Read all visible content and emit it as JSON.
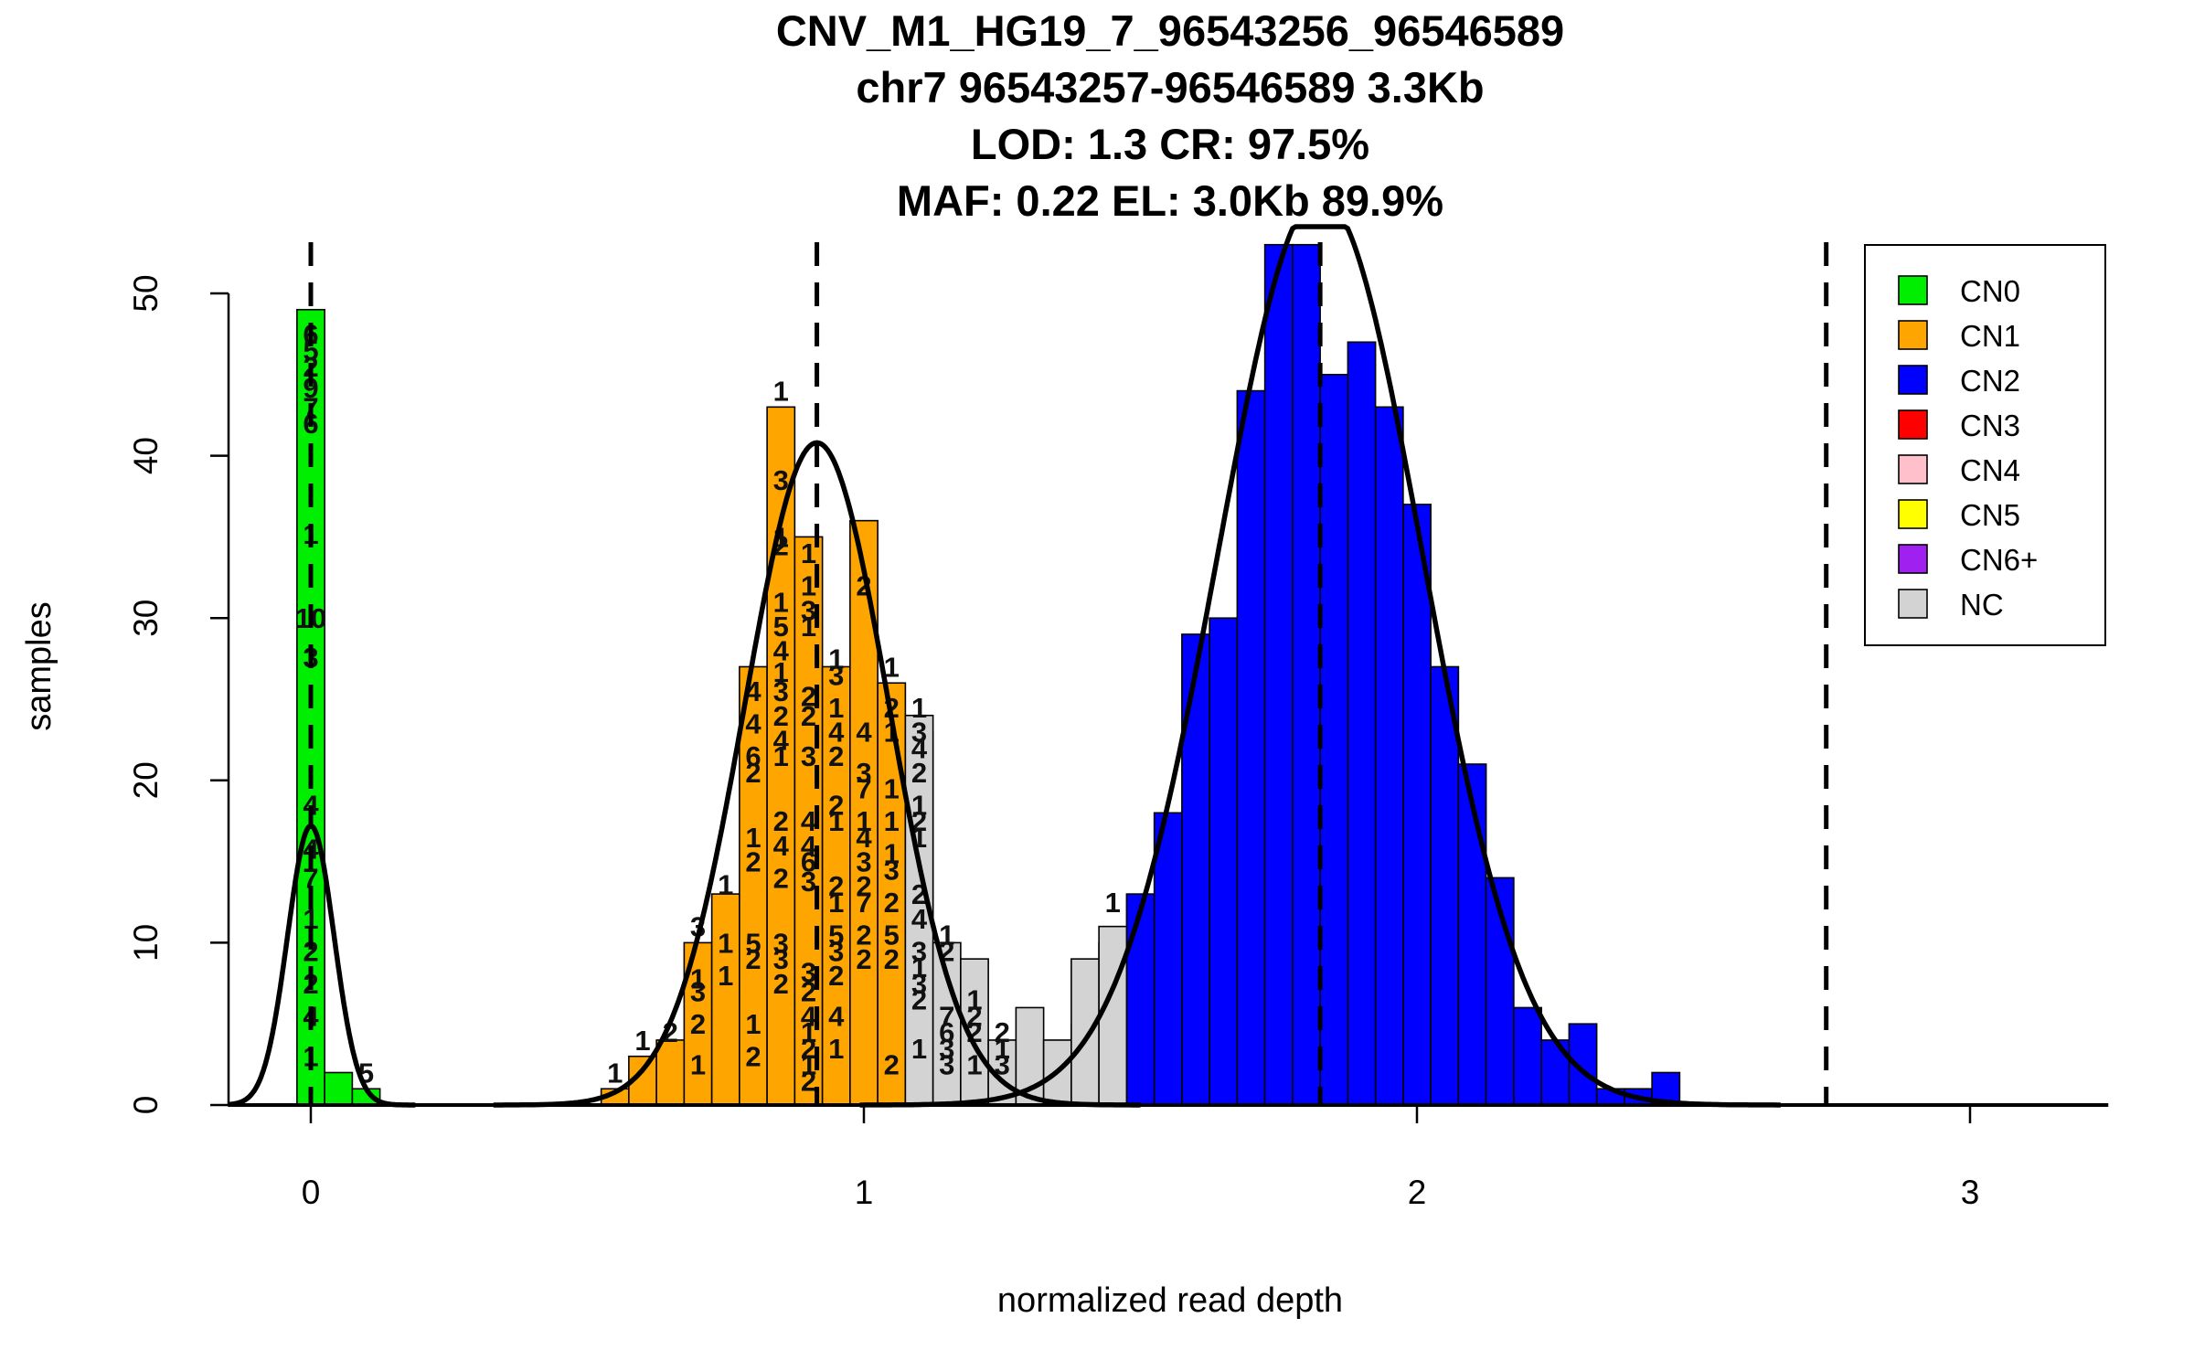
{
  "chart_data": {
    "type": "bar",
    "title_lines": [
      "CNV_M1_HG19_7_96543256_96546589",
      "chr7 96543257-96546589 3.3Kb",
      "LOD: 1.3 CR: 97.5%",
      "MAF: 0.22 EL: 3.0Kb 89.9%"
    ],
    "xlabel": "normalized read depth",
    "ylabel": "samples",
    "xlim": [
      -0.15,
      3.25
    ],
    "ylim": [
      0,
      53.5
    ],
    "x_ticks": [
      "0",
      "1",
      "2",
      "3"
    ],
    "y_ticks": [
      "0",
      "10",
      "20",
      "30",
      "40",
      "50"
    ],
    "bin_width": 0.05,
    "legend": {
      "placement": "top-right",
      "items": [
        {
          "label": "CN0",
          "color": "#00ee00"
        },
        {
          "label": "CN1",
          "color": "#ffa500"
        },
        {
          "label": "CN2",
          "color": "#0000ff"
        },
        {
          "label": "CN3",
          "color": "#ff0000"
        },
        {
          "label": "CN4",
          "color": "#ffc0cb"
        },
        {
          "label": "CN5",
          "color": "#ffff00"
        },
        {
          "label": "CN6+",
          "color": "#a020f0"
        },
        {
          "label": "NC",
          "color": "#d3d3d3"
        }
      ]
    },
    "series": [
      {
        "name": "CN0",
        "color": "#00ee00",
        "bins": [
          {
            "x0": -0.025,
            "value": 49
          },
          {
            "x0": 0.025,
            "value": 2
          },
          {
            "x0": 0.075,
            "value": 1
          }
        ]
      },
      {
        "name": "CN1",
        "color": "#ffa500",
        "bins": [
          {
            "x0": 0.525,
            "value": 1
          },
          {
            "x0": 0.575,
            "value": 3
          },
          {
            "x0": 0.625,
            "value": 4
          },
          {
            "x0": 0.675,
            "value": 10
          },
          {
            "x0": 0.725,
            "value": 13
          },
          {
            "x0": 0.775,
            "value": 27
          },
          {
            "x0": 0.825,
            "value": 43
          },
          {
            "x0": 0.875,
            "value": 35
          },
          {
            "x0": 0.925,
            "value": 27
          },
          {
            "x0": 0.975,
            "value": 36
          },
          {
            "x0": 1.025,
            "value": 26
          },
          {
            "x0": 1.075,
            "value": 23
          },
          {
            "x0": 1.125,
            "value": 9
          },
          {
            "x0": 1.175,
            "value": 4
          },
          {
            "x0": 1.225,
            "value": 1
          }
        ]
      },
      {
        "name": "CN2",
        "color": "#0000ff",
        "bins": [
          {
            "x0": 1.325,
            "value": 1
          },
          {
            "x0": 1.375,
            "value": 5
          },
          {
            "x0": 1.425,
            "value": 10
          },
          {
            "x0": 1.475,
            "value": 13
          },
          {
            "x0": 1.525,
            "value": 18
          },
          {
            "x0": 1.575,
            "value": 29
          },
          {
            "x0": 1.625,
            "value": 30
          },
          {
            "x0": 1.675,
            "value": 44
          },
          {
            "x0": 1.725,
            "value": 53
          },
          {
            "x0": 1.775,
            "value": 53
          },
          {
            "x0": 1.825,
            "value": 45
          },
          {
            "x0": 1.875,
            "value": 47
          },
          {
            "x0": 1.925,
            "value": 43
          },
          {
            "x0": 1.975,
            "value": 37
          },
          {
            "x0": 2.025,
            "value": 27
          },
          {
            "x0": 2.075,
            "value": 21
          },
          {
            "x0": 2.125,
            "value": 14
          },
          {
            "x0": 2.175,
            "value": 6
          },
          {
            "x0": 2.225,
            "value": 4
          },
          {
            "x0": 2.275,
            "value": 5
          },
          {
            "x0": 2.325,
            "value": 1
          },
          {
            "x0": 2.375,
            "value": 1
          },
          {
            "x0": 2.425,
            "value": 2
          }
        ]
      },
      {
        "name": "NC",
        "color": "#d3d3d3",
        "bins": [
          {
            "x0": 1.075,
            "value": 24
          },
          {
            "x0": 1.125,
            "value": 10
          },
          {
            "x0": 1.175,
            "value": 9
          },
          {
            "x0": 1.225,
            "value": 4
          },
          {
            "x0": 1.275,
            "value": 6
          },
          {
            "x0": 1.325,
            "value": 4
          },
          {
            "x0": 1.375,
            "value": 9
          },
          {
            "x0": 1.425,
            "value": 11
          }
        ]
      }
    ],
    "bar_labels": [
      {
        "x": 0.0,
        "y": 47.5,
        "text": "6"
      },
      {
        "x": 0.0,
        "y": 46.5,
        "text": "5"
      },
      {
        "x": 0.0,
        "y": 45.5,
        "text": "2"
      },
      {
        "x": 0.0,
        "y": 44.2,
        "text": "9"
      },
      {
        "x": 0.0,
        "y": 43.0,
        "text": "7"
      },
      {
        "x": 0.0,
        "y": 42.0,
        "text": "6"
      },
      {
        "x": 0.0,
        "y": 35.2,
        "text": "1"
      },
      {
        "x": 0.0,
        "y": 30.0,
        "text": "10"
      },
      {
        "x": 0.0,
        "y": 27.6,
        "text": "3"
      },
      {
        "x": 0.0,
        "y": 18.5,
        "text": "4"
      },
      {
        "x": 0.0,
        "y": 15.8,
        "text": "4"
      },
      {
        "x": 0.0,
        "y": 14.0,
        "text": "7"
      },
      {
        "x": 0.0,
        "y": 11.5,
        "text": "1"
      },
      {
        "x": 0.0,
        "y": 9.5,
        "text": "2"
      },
      {
        "x": 0.0,
        "y": 7.5,
        "text": "2"
      },
      {
        "x": 0.0,
        "y": 5.5,
        "text": "4"
      },
      {
        "x": 0.0,
        "y": 3.0,
        "text": "1"
      },
      {
        "x": 0.1,
        "y": 2.0,
        "text": "5"
      },
      {
        "x": 0.55,
        "y": 2.0,
        "text": "1"
      },
      {
        "x": 0.6,
        "y": 4.0,
        "text": "1"
      },
      {
        "x": 0.65,
        "y": 4.5,
        "text": "2"
      },
      {
        "x": 0.7,
        "y": 11.0,
        "text": "3"
      },
      {
        "x": 0.7,
        "y": 7.8,
        "text": "1"
      },
      {
        "x": 0.7,
        "y": 7.0,
        "text": "3"
      },
      {
        "x": 0.7,
        "y": 5.0,
        "text": "2"
      },
      {
        "x": 0.7,
        "y": 2.5,
        "text": "1"
      },
      {
        "x": 0.75,
        "y": 13.6,
        "text": "1"
      },
      {
        "x": 0.75,
        "y": 10.0,
        "text": "1"
      },
      {
        "x": 0.75,
        "y": 8.0,
        "text": "1"
      },
      {
        "x": 0.8,
        "y": 25.5,
        "text": "4"
      },
      {
        "x": 0.8,
        "y": 23.5,
        "text": "4"
      },
      {
        "x": 0.8,
        "y": 21.5,
        "text": "6"
      },
      {
        "x": 0.8,
        "y": 20.5,
        "text": "2"
      },
      {
        "x": 0.8,
        "y": 16.5,
        "text": "1"
      },
      {
        "x": 0.8,
        "y": 15.0,
        "text": "2"
      },
      {
        "x": 0.8,
        "y": 10.0,
        "text": "5"
      },
      {
        "x": 0.8,
        "y": 9.0,
        "text": "2"
      },
      {
        "x": 0.8,
        "y": 5.0,
        "text": "1"
      },
      {
        "x": 0.8,
        "y": 3.0,
        "text": "2"
      },
      {
        "x": 0.85,
        "y": 44.0,
        "text": "1"
      },
      {
        "x": 0.85,
        "y": 38.5,
        "text": "3"
      },
      {
        "x": 0.85,
        "y": 35.0,
        "text": "1"
      },
      {
        "x": 0.85,
        "y": 34.5,
        "text": "2"
      },
      {
        "x": 0.85,
        "y": 31.0,
        "text": "1"
      },
      {
        "x": 0.85,
        "y": 29.5,
        "text": "5"
      },
      {
        "x": 0.85,
        "y": 28.0,
        "text": "4"
      },
      {
        "x": 0.85,
        "y": 26.7,
        "text": "1"
      },
      {
        "x": 0.85,
        "y": 25.5,
        "text": "3"
      },
      {
        "x": 0.85,
        "y": 24.0,
        "text": "2"
      },
      {
        "x": 0.85,
        "y": 22.5,
        "text": "4"
      },
      {
        "x": 0.85,
        "y": 21.5,
        "text": "1"
      },
      {
        "x": 0.85,
        "y": 17.5,
        "text": "2"
      },
      {
        "x": 0.85,
        "y": 16.0,
        "text": "4"
      },
      {
        "x": 0.85,
        "y": 14.0,
        "text": "2"
      },
      {
        "x": 0.85,
        "y": 10.0,
        "text": "3"
      },
      {
        "x": 0.85,
        "y": 9.0,
        "text": "3"
      },
      {
        "x": 0.85,
        "y": 7.5,
        "text": "2"
      },
      {
        "x": 0.9,
        "y": 34.0,
        "text": "1"
      },
      {
        "x": 0.9,
        "y": 32.0,
        "text": "1"
      },
      {
        "x": 0.9,
        "y": 30.5,
        "text": "3"
      },
      {
        "x": 0.9,
        "y": 29.5,
        "text": "1"
      },
      {
        "x": 0.9,
        "y": 25.2,
        "text": "2"
      },
      {
        "x": 0.9,
        "y": 24.0,
        "text": "2"
      },
      {
        "x": 0.9,
        "y": 21.5,
        "text": "3"
      },
      {
        "x": 0.9,
        "y": 17.5,
        "text": "4"
      },
      {
        "x": 0.9,
        "y": 16.0,
        "text": "4"
      },
      {
        "x": 0.9,
        "y": 15.0,
        "text": "6"
      },
      {
        "x": 0.9,
        "y": 13.8,
        "text": "3"
      },
      {
        "x": 0.9,
        "y": 8.2,
        "text": "3"
      },
      {
        "x": 0.9,
        "y": 7.0,
        "text": "2"
      },
      {
        "x": 0.9,
        "y": 5.5,
        "text": "4"
      },
      {
        "x": 0.9,
        "y": 4.5,
        "text": "1"
      },
      {
        "x": 0.9,
        "y": 3.5,
        "text": "2"
      },
      {
        "x": 0.9,
        "y": 2.5,
        "text": "1"
      },
      {
        "x": 0.9,
        "y": 1.5,
        "text": "2"
      },
      {
        "x": 0.95,
        "y": 27.5,
        "text": "1"
      },
      {
        "x": 0.95,
        "y": 26.5,
        "text": "3"
      },
      {
        "x": 0.95,
        "y": 24.5,
        "text": "1"
      },
      {
        "x": 0.95,
        "y": 23.0,
        "text": "4"
      },
      {
        "x": 0.95,
        "y": 21.5,
        "text": "2"
      },
      {
        "x": 0.95,
        "y": 18.5,
        "text": "2"
      },
      {
        "x": 0.95,
        "y": 17.5,
        "text": "1"
      },
      {
        "x": 0.95,
        "y": 13.5,
        "text": "2"
      },
      {
        "x": 0.95,
        "y": 12.5,
        "text": "1"
      },
      {
        "x": 0.95,
        "y": 10.5,
        "text": "5"
      },
      {
        "x": 0.95,
        "y": 9.5,
        "text": "3"
      },
      {
        "x": 0.95,
        "y": 8.0,
        "text": "2"
      },
      {
        "x": 0.95,
        "y": 5.5,
        "text": "4"
      },
      {
        "x": 0.95,
        "y": 3.5,
        "text": "1"
      },
      {
        "x": 1.0,
        "y": 32.0,
        "text": "2"
      },
      {
        "x": 1.0,
        "y": 23.0,
        "text": "4"
      },
      {
        "x": 1.0,
        "y": 20.5,
        "text": "3"
      },
      {
        "x": 1.0,
        "y": 19.5,
        "text": "7"
      },
      {
        "x": 1.0,
        "y": 17.5,
        "text": "1"
      },
      {
        "x": 1.0,
        "y": 16.5,
        "text": "4"
      },
      {
        "x": 1.0,
        "y": 15.0,
        "text": "3"
      },
      {
        "x": 1.0,
        "y": 13.5,
        "text": "2"
      },
      {
        "x": 1.0,
        "y": 12.5,
        "text": "7"
      },
      {
        "x": 1.0,
        "y": 10.5,
        "text": "2"
      },
      {
        "x": 1.0,
        "y": 9.0,
        "text": "2"
      },
      {
        "x": 1.05,
        "y": 27.0,
        "text": "1"
      },
      {
        "x": 1.05,
        "y": 24.5,
        "text": "2"
      },
      {
        "x": 1.05,
        "y": 23.0,
        "text": "1"
      },
      {
        "x": 1.05,
        "y": 19.5,
        "text": "1"
      },
      {
        "x": 1.05,
        "y": 17.5,
        "text": "1"
      },
      {
        "x": 1.05,
        "y": 15.5,
        "text": "1"
      },
      {
        "x": 1.05,
        "y": 14.5,
        "text": "3"
      },
      {
        "x": 1.05,
        "y": 12.5,
        "text": "2"
      },
      {
        "x": 1.05,
        "y": 10.5,
        "text": "5"
      },
      {
        "x": 1.05,
        "y": 9.0,
        "text": "2"
      },
      {
        "x": 1.05,
        "y": 2.5,
        "text": "2"
      },
      {
        "x": 1.1,
        "y": 24.5,
        "text": "1"
      },
      {
        "x": 1.1,
        "y": 23.0,
        "text": "3"
      },
      {
        "x": 1.1,
        "y": 22.0,
        "text": "4"
      },
      {
        "x": 1.1,
        "y": 20.5,
        "text": "2"
      },
      {
        "x": 1.1,
        "y": 18.5,
        "text": "1"
      },
      {
        "x": 1.1,
        "y": 17.5,
        "text": "2"
      },
      {
        "x": 1.1,
        "y": 16.5,
        "text": "1"
      },
      {
        "x": 1.1,
        "y": 13.0,
        "text": "2"
      },
      {
        "x": 1.1,
        "y": 11.5,
        "text": "4"
      },
      {
        "x": 1.1,
        "y": 9.5,
        "text": "3"
      },
      {
        "x": 1.1,
        "y": 8.5,
        "text": "1"
      },
      {
        "x": 1.1,
        "y": 7.5,
        "text": "3"
      },
      {
        "x": 1.1,
        "y": 6.5,
        "text": "2"
      },
      {
        "x": 1.1,
        "y": 3.5,
        "text": "1"
      },
      {
        "x": 1.15,
        "y": 10.5,
        "text": "1"
      },
      {
        "x": 1.15,
        "y": 9.5,
        "text": "2"
      },
      {
        "x": 1.15,
        "y": 5.5,
        "text": "7"
      },
      {
        "x": 1.15,
        "y": 4.5,
        "text": "6"
      },
      {
        "x": 1.15,
        "y": 3.5,
        "text": "3"
      },
      {
        "x": 1.15,
        "y": 2.5,
        "text": "3"
      },
      {
        "x": 1.2,
        "y": 6.5,
        "text": "1"
      },
      {
        "x": 1.2,
        "y": 5.5,
        "text": "2"
      },
      {
        "x": 1.2,
        "y": 4.5,
        "text": "2"
      },
      {
        "x": 1.2,
        "y": 2.5,
        "text": "1"
      },
      {
        "x": 1.25,
        "y": 4.5,
        "text": "2"
      },
      {
        "x": 1.25,
        "y": 3.5,
        "text": "1"
      },
      {
        "x": 1.25,
        "y": 2.5,
        "text": "3"
      },
      {
        "x": 1.45,
        "y": 12.5,
        "text": "1"
      }
    ],
    "curves": [
      {
        "mean": 0.0,
        "sd": 0.042,
        "peak": 17.2
      },
      {
        "mean": 0.915,
        "sd": 0.13,
        "peak": 40.8
      },
      {
        "mean": 1.825,
        "sd": 0.185,
        "peak": 56.0
      }
    ],
    "dashed_lines_x": [
      0.0,
      0.915,
      1.825,
      2.74
    ]
  }
}
